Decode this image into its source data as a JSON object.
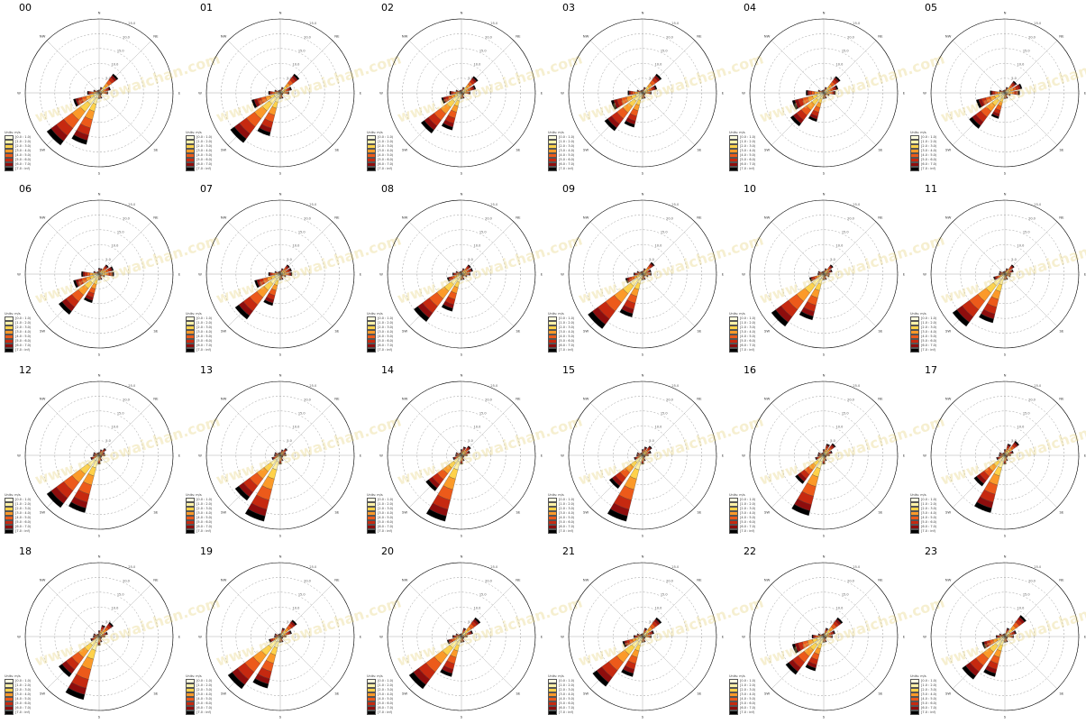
{
  "figure": {
    "watermark": "www.mesowaichan.com"
  },
  "colors": {
    "bins": [
      "#ffffe0",
      "#fff2a8",
      "#ffd24a",
      "#fb9a29",
      "#ec5a1a",
      "#c62910",
      "#8e0d0d",
      "#000000"
    ],
    "grid": "#9a9a9a",
    "frame": "#000000"
  },
  "legend_labels": [
    "Units: m/s",
    "[0.0 : 1.0)",
    "[1.0 : 2.0)",
    "[2.0 : 3.0)",
    "[3.0 : 4.0)",
    "[4.0 : 5.0)",
    "[5.0 : 6.0)",
    "[6.0 : 7.0)",
    "[7.0 : inf)"
  ],
  "direction_labels": [
    "N",
    "NE",
    "E",
    "SE",
    "S",
    "SW",
    "W",
    "NW"
  ],
  "ring_labels": [
    "5.0",
    "10.0",
    "15.0",
    "20.0",
    "25.0"
  ],
  "chart_data": [
    {
      "type": "windrose",
      "title": "00",
      "directions": [
        "N",
        "NNE",
        "NE",
        "ENE",
        "E",
        "ESE",
        "SE",
        "SSE",
        "S",
        "SSW",
        "SW",
        "WSW",
        "W",
        "WNW",
        "NW",
        "NNW"
      ],
      "frequency_pct": [
        1,
        2,
        8,
        4,
        3,
        1,
        1,
        2,
        2,
        18,
        22,
        9,
        4,
        2,
        1,
        1
      ],
      "rmax": 25
    },
    {
      "type": "windrose",
      "title": "01",
      "directions": [
        "N",
        "NNE",
        "NE",
        "ENE",
        "E",
        "ESE",
        "SE",
        "SSE",
        "S",
        "SSW",
        "SW",
        "WSW",
        "W",
        "WNW",
        "NW",
        "NNW"
      ],
      "frequency_pct": [
        1,
        2,
        8,
        4,
        3,
        1,
        1,
        2,
        2,
        15,
        21,
        10,
        4,
        2,
        1,
        1
      ],
      "rmax": 25
    },
    {
      "type": "windrose",
      "title": "02",
      "directions": [
        "N",
        "NNE",
        "NE",
        "ENE",
        "E",
        "ESE",
        "SE",
        "SSE",
        "S",
        "SSW",
        "SW",
        "WSW",
        "W",
        "WNW",
        "NW",
        "NNW"
      ],
      "frequency_pct": [
        1,
        2,
        7,
        5,
        3,
        1,
        1,
        2,
        2,
        13,
        17,
        7,
        4,
        2,
        1,
        1
      ],
      "rmax": 25
    },
    {
      "type": "windrose",
      "title": "03",
      "directions": [
        "N",
        "NNE",
        "NE",
        "ENE",
        "E",
        "ESE",
        "SE",
        "SSE",
        "S",
        "SSW",
        "SW",
        "WSW",
        "W",
        "WNW",
        "NW",
        "NNW"
      ],
      "frequency_pct": [
        1,
        2,
        8,
        5,
        3,
        1,
        1,
        2,
        2,
        12,
        16,
        11,
        5,
        2,
        1,
        1
      ],
      "rmax": 25
    },
    {
      "type": "windrose",
      "title": "04",
      "directions": [
        "N",
        "NNE",
        "NE",
        "ENE",
        "E",
        "ESE",
        "SE",
        "SSE",
        "S",
        "SSW",
        "SW",
        "WSW",
        "W",
        "WNW",
        "NW",
        "NNW"
      ],
      "frequency_pct": [
        1,
        2,
        7,
        5,
        4,
        2,
        1,
        2,
        2,
        10,
        14,
        11,
        6,
        2,
        1,
        1
      ],
      "rmax": 25
    },
    {
      "type": "windrose",
      "title": "05",
      "directions": [
        "N",
        "NNE",
        "NE",
        "ENE",
        "E",
        "ESE",
        "SE",
        "SSE",
        "S",
        "SSW",
        "SW",
        "WSW",
        "W",
        "WNW",
        "NW",
        "NNW"
      ],
      "frequency_pct": [
        1,
        2,
        5,
        6,
        5,
        2,
        1,
        2,
        2,
        9,
        15,
        10,
        5,
        2,
        1,
        1
      ],
      "rmax": 25
    },
    {
      "type": "windrose",
      "title": "06",
      "directions": [
        "N",
        "NNE",
        "NE",
        "ENE",
        "E",
        "ESE",
        "SE",
        "SSE",
        "S",
        "SSW",
        "SW",
        "WSW",
        "W",
        "WNW",
        "NW",
        "NNW"
      ],
      "frequency_pct": [
        2,
        2,
        4,
        5,
        5,
        2,
        1,
        2,
        2,
        10,
        17,
        9,
        6,
        2,
        1,
        1
      ],
      "rmax": 25
    },
    {
      "type": "windrose",
      "title": "07",
      "directions": [
        "N",
        "NNE",
        "NE",
        "ENE",
        "E",
        "ESE",
        "SE",
        "SSE",
        "S",
        "SSW",
        "SW",
        "WSW",
        "W",
        "WNW",
        "NW",
        "NNW"
      ],
      "frequency_pct": [
        1,
        2,
        4,
        4,
        4,
        2,
        1,
        2,
        2,
        11,
        19,
        9,
        4,
        2,
        1,
        1
      ],
      "rmax": 25
    },
    {
      "type": "windrose",
      "title": "08",
      "directions": [
        "N",
        "NNE",
        "NE",
        "ENE",
        "E",
        "ESE",
        "SE",
        "SSE",
        "S",
        "SSW",
        "SW",
        "WSW",
        "W",
        "WNW",
        "NW",
        "NNW"
      ],
      "frequency_pct": [
        1,
        2,
        4,
        4,
        3,
        2,
        1,
        2,
        2,
        13,
        20,
        5,
        3,
        2,
        1,
        1
      ],
      "rmax": 25
    },
    {
      "type": "windrose",
      "title": "09",
      "directions": [
        "N",
        "NNE",
        "NE",
        "ENE",
        "E",
        "ESE",
        "SE",
        "SSE",
        "S",
        "SSW",
        "SW",
        "WSW",
        "W",
        "WNW",
        "NW",
        "NNW"
      ],
      "frequency_pct": [
        1,
        2,
        5,
        3,
        3,
        2,
        1,
        2,
        2,
        15,
        23,
        6,
        3,
        2,
        1,
        1
      ],
      "rmax": 25
    },
    {
      "type": "windrose",
      "title": "10",
      "directions": [
        "N",
        "NNE",
        "NE",
        "ENE",
        "E",
        "ESE",
        "SE",
        "SSE",
        "S",
        "SSW",
        "SW",
        "WSW",
        "W",
        "WNW",
        "NW",
        "NNW"
      ],
      "frequency_pct": [
        1,
        2,
        4,
        3,
        2,
        2,
        1,
        2,
        2,
        16,
        22,
        5,
        2,
        2,
        1,
        1
      ],
      "rmax": 25
    },
    {
      "type": "windrose",
      "title": "11",
      "directions": [
        "N",
        "NNE",
        "NE",
        "ENE",
        "E",
        "ESE",
        "SE",
        "SSE",
        "S",
        "SSW",
        "SW",
        "WSW",
        "W",
        "WNW",
        "NW",
        "NNW"
      ],
      "frequency_pct": [
        1,
        2,
        4,
        3,
        2,
        2,
        1,
        2,
        2,
        17,
        22,
        4,
        2,
        2,
        1,
        1
      ],
      "rmax": 25
    },
    {
      "type": "windrose",
      "title": "12",
      "directions": [
        "N",
        "NNE",
        "NE",
        "ENE",
        "E",
        "ESE",
        "SE",
        "SSE",
        "S",
        "SSW",
        "SW",
        "WSW",
        "W",
        "WNW",
        "NW",
        "NNW"
      ],
      "frequency_pct": [
        1,
        2,
        3,
        2,
        2,
        1,
        1,
        2,
        3,
        20,
        22,
        3,
        2,
        2,
        1,
        1
      ],
      "rmax": 25
    },
    {
      "type": "windrose",
      "title": "13",
      "directions": [
        "N",
        "NNE",
        "NE",
        "ENE",
        "E",
        "ESE",
        "SE",
        "SSE",
        "S",
        "SSW",
        "SW",
        "WSW",
        "W",
        "WNW",
        "NW",
        "NNW"
      ],
      "frequency_pct": [
        1,
        2,
        3,
        2,
        2,
        1,
        1,
        2,
        3,
        23,
        19,
        3,
        2,
        2,
        1,
        1
      ],
      "rmax": 25
    },
    {
      "type": "windrose",
      "title": "14",
      "directions": [
        "N",
        "NNE",
        "NE",
        "ENE",
        "E",
        "ESE",
        "SE",
        "SSE",
        "S",
        "SSW",
        "SW",
        "WSW",
        "W",
        "WNW",
        "NW",
        "NNW"
      ],
      "frequency_pct": [
        2,
        3,
        4,
        3,
        2,
        1,
        1,
        2,
        3,
        23,
        15,
        3,
        2,
        2,
        1,
        1
      ],
      "rmax": 25
    },
    {
      "type": "windrose",
      "title": "15",
      "directions": [
        "N",
        "NNE",
        "NE",
        "ENE",
        "E",
        "ESE",
        "SE",
        "SSE",
        "S",
        "SSW",
        "SW",
        "WSW",
        "W",
        "WNW",
        "NW",
        "NNW"
      ],
      "frequency_pct": [
        2,
        3,
        4,
        3,
        2,
        1,
        1,
        2,
        3,
        23,
        14,
        3,
        2,
        2,
        1,
        1
      ],
      "rmax": 25
    },
    {
      "type": "windrose",
      "title": "16",
      "directions": [
        "N",
        "NNE",
        "NE",
        "ENE",
        "E",
        "ESE",
        "SE",
        "SSE",
        "S",
        "SSW",
        "SW",
        "WSW",
        "W",
        "WNW",
        "NW",
        "NNW"
      ],
      "frequency_pct": [
        2,
        4,
        5,
        3,
        2,
        1,
        1,
        2,
        3,
        21,
        12,
        3,
        2,
        2,
        1,
        1
      ],
      "rmax": 25
    },
    {
      "type": "windrose",
      "title": "17",
      "directions": [
        "N",
        "NNE",
        "NE",
        "ENE",
        "E",
        "ESE",
        "SE",
        "SSE",
        "S",
        "SSW",
        "SW",
        "WSW",
        "W",
        "WNW",
        "NW",
        "NNW"
      ],
      "frequency_pct": [
        2,
        4,
        6,
        3,
        2,
        1,
        1,
        2,
        3,
        20,
        13,
        3,
        2,
        2,
        1,
        1
      ],
      "rmax": 25
    },
    {
      "type": "windrose",
      "title": "18",
      "directions": [
        "N",
        "NNE",
        "NE",
        "ENE",
        "E",
        "ESE",
        "SE",
        "SSE",
        "S",
        "SSW",
        "SW",
        "WSW",
        "W",
        "WNW",
        "NW",
        "NNW"
      ],
      "frequency_pct": [
        2,
        4,
        6,
        3,
        2,
        1,
        1,
        2,
        3,
        22,
        17,
        3,
        2,
        2,
        1,
        1
      ],
      "rmax": 25
    },
    {
      "type": "windrose",
      "title": "19",
      "directions": [
        "N",
        "NNE",
        "NE",
        "ENE",
        "E",
        "ESE",
        "SE",
        "SSE",
        "S",
        "SSW",
        "SW",
        "WSW",
        "W",
        "WNW",
        "NW",
        "NNW"
      ],
      "frequency_pct": [
        1,
        3,
        7,
        4,
        2,
        1,
        1,
        2,
        2,
        18,
        22,
        4,
        2,
        2,
        1,
        1
      ],
      "rmax": 25
    },
    {
      "type": "windrose",
      "title": "20",
      "directions": [
        "N",
        "NNE",
        "NE",
        "ENE",
        "E",
        "ESE",
        "SE",
        "SSE",
        "S",
        "SSW",
        "SW",
        "WSW",
        "W",
        "WNW",
        "NW",
        "NNW"
      ],
      "frequency_pct": [
        1,
        3,
        8,
        4,
        2,
        1,
        1,
        2,
        2,
        14,
        22,
        5,
        3,
        2,
        1,
        1
      ],
      "rmax": 25
    },
    {
      "type": "windrose",
      "title": "21",
      "directions": [
        "N",
        "NNE",
        "NE",
        "ENE",
        "E",
        "ESE",
        "SE",
        "SSE",
        "S",
        "SSW",
        "SW",
        "WSW",
        "W",
        "WNW",
        "NW",
        "NNW"
      ],
      "frequency_pct": [
        1,
        3,
        8,
        4,
        3,
        1,
        1,
        2,
        2,
        14,
        21,
        7,
        3,
        2,
        1,
        1
      ],
      "rmax": 25
    },
    {
      "type": "windrose",
      "title": "22",
      "directions": [
        "N",
        "NNE",
        "NE",
        "ENE",
        "E",
        "ESE",
        "SE",
        "SSE",
        "S",
        "SSW",
        "SW",
        "WSW",
        "W",
        "WNW",
        "NW",
        "NNW"
      ],
      "frequency_pct": [
        1,
        3,
        8,
        4,
        3,
        1,
        1,
        2,
        2,
        12,
        16,
        11,
        4,
        2,
        1,
        1
      ],
      "rmax": 25
    },
    {
      "type": "windrose",
      "title": "23",
      "directions": [
        "N",
        "NNE",
        "NE",
        "ENE",
        "E",
        "ESE",
        "SE",
        "SSE",
        "S",
        "SSW",
        "SW",
        "WSW",
        "W",
        "WNW",
        "NW",
        "NNW"
      ],
      "frequency_pct": [
        1,
        3,
        9,
        4,
        3,
        1,
        1,
        2,
        2,
        14,
        18,
        8,
        3,
        2,
        1,
        1
      ],
      "rmax": 25
    }
  ]
}
